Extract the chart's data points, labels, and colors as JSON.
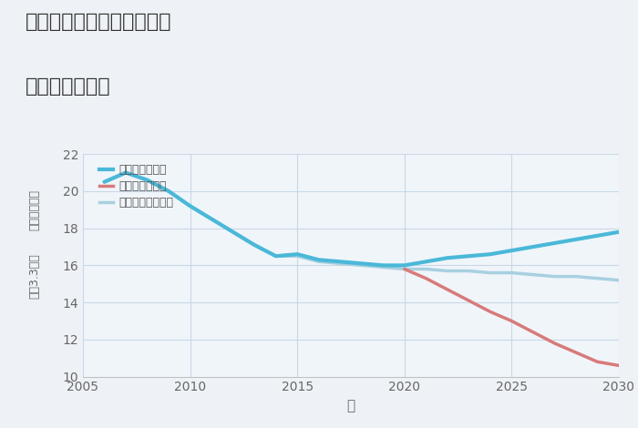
{
  "title_line1": "三重県津市河芸町北黒田の",
  "title_line2": "土地の価格推移",
  "xlabel": "年",
  "ylabel_top": "単価（万円）",
  "ylabel_bottom": "坪（3.3㎡）",
  "xlim": [
    2005,
    2030
  ],
  "ylim": [
    10,
    22
  ],
  "yticks": [
    10,
    12,
    14,
    16,
    18,
    20,
    22
  ],
  "xticks": [
    2005,
    2010,
    2015,
    2020,
    2025,
    2030
  ],
  "background_color": "#eef2f7",
  "plot_bg_color": "#f0f5fa",
  "good_scenario": {
    "label": "グッドシナリオ",
    "color": "#4ab8d8",
    "linewidth": 3.0,
    "x": [
      2006,
      2007,
      2008,
      2009,
      2010,
      2011,
      2012,
      2013,
      2014,
      2015,
      2016,
      2017,
      2018,
      2019,
      2020,
      2021,
      2022,
      2023,
      2024,
      2025,
      2026,
      2027,
      2028,
      2029,
      2030
    ],
    "y": [
      20.5,
      21.0,
      20.6,
      20.0,
      19.2,
      18.5,
      17.8,
      17.1,
      16.5,
      16.6,
      16.3,
      16.2,
      16.1,
      16.0,
      16.0,
      16.2,
      16.4,
      16.5,
      16.6,
      16.8,
      17.0,
      17.2,
      17.4,
      17.6,
      17.8
    ]
  },
  "bad_scenario": {
    "label": "バッドシナリオ",
    "color": "#d87a7a",
    "linewidth": 2.5,
    "x": [
      2020,
      2021,
      2022,
      2023,
      2024,
      2025,
      2026,
      2027,
      2028,
      2029,
      2030
    ],
    "y": [
      15.8,
      15.3,
      14.7,
      14.1,
      13.5,
      13.0,
      12.4,
      11.8,
      11.3,
      10.8,
      10.6
    ]
  },
  "normal_scenario": {
    "label": "ノーマルシナリオ",
    "color": "#a8d0e0",
    "linewidth": 2.5,
    "x": [
      2006,
      2007,
      2008,
      2009,
      2010,
      2011,
      2012,
      2013,
      2014,
      2015,
      2016,
      2017,
      2018,
      2019,
      2020,
      2021,
      2022,
      2023,
      2024,
      2025,
      2026,
      2027,
      2028,
      2029,
      2030
    ],
    "y": [
      20.5,
      21.0,
      20.6,
      20.0,
      19.2,
      18.5,
      17.8,
      17.1,
      16.5,
      16.5,
      16.2,
      16.1,
      16.0,
      15.9,
      15.8,
      15.8,
      15.7,
      15.7,
      15.6,
      15.6,
      15.5,
      15.4,
      15.4,
      15.3,
      15.2
    ]
  }
}
